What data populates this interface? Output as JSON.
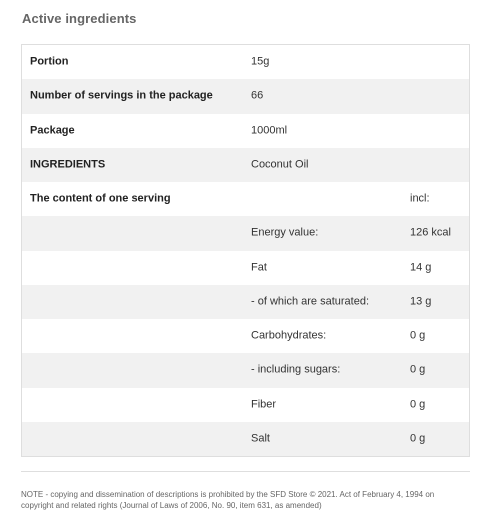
{
  "section": {
    "title": "Active ingredients"
  },
  "table": {
    "rows": [
      {
        "label": "Portion",
        "value": "15g",
        "extra": ""
      },
      {
        "label": "Number of servings in the package",
        "value": "66",
        "extra": ""
      },
      {
        "label": "Package",
        "value": "1000ml",
        "extra": ""
      },
      {
        "label": "INGREDIENTS",
        "value": "Coconut Oil",
        "extra": ""
      },
      {
        "label": "The content of one serving",
        "value": "",
        "extra": "incl:"
      },
      {
        "label": "",
        "value": "Energy value:",
        "extra": "126 kcal"
      },
      {
        "label": "",
        "value": "Fat",
        "extra": "14 g"
      },
      {
        "label": "",
        "value": "- of which are saturated:",
        "extra": "13 g"
      },
      {
        "label": "",
        "value": "Carbohydrates:",
        "extra": "0 g"
      },
      {
        "label": "",
        "value": "- including sugars:",
        "extra": "0 g"
      },
      {
        "label": "",
        "value": "Fiber",
        "extra": "0 g"
      },
      {
        "label": "",
        "value": "Salt",
        "extra": "0 g"
      }
    ]
  },
  "footer": {
    "note": "NOTE - copying and dissemination of descriptions is prohibited by the SFD Store © 2021. Act of February 4, 1994 on copyright and related rights (Journal of Laws of 2006, No. 90, item 631, as amended)"
  },
  "colors": {
    "title": "#666666",
    "row_shade": "#f1f1f1",
    "border": "#dedede"
  }
}
